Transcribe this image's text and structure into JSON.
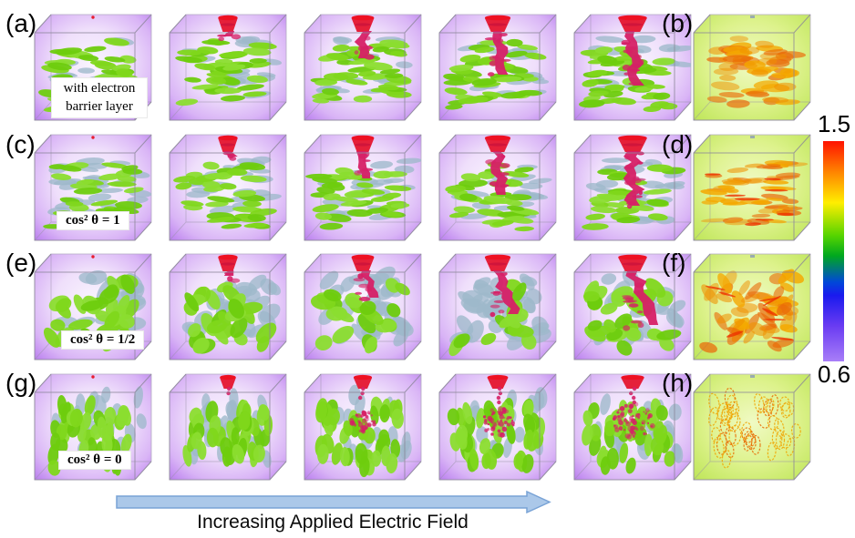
{
  "rows": [
    {
      "label": "(a)",
      "viz_label": "(b)",
      "caption": "with electron barrier layer",
      "caption_style": "text",
      "orientation": "horizontal",
      "breakdown": "tree",
      "stages": [
        0,
        1,
        2,
        3,
        4
      ],
      "disc_count": 58,
      "gray_ratio": 0.3,
      "viz_style": "filled"
    },
    {
      "label": "(c)",
      "viz_label": "(d)",
      "caption": "cos² θ = 1",
      "caption_style": "math",
      "orientation": "horizontal",
      "breakdown": "tree",
      "stages": [
        0,
        1,
        2,
        3,
        4
      ],
      "disc_count": 56,
      "gray_ratio": 0.42,
      "viz_style": "filled-thin"
    },
    {
      "label": "(e)",
      "viz_label": "(f)",
      "caption": "cos² θ = 1/2",
      "caption_style": "math",
      "orientation": "random",
      "breakdown": "tree",
      "stages": [
        0,
        1,
        2,
        3,
        4
      ],
      "disc_count": 52,
      "gray_ratio": 0.45,
      "viz_style": "filled-mixed"
    },
    {
      "label": "(g)",
      "viz_label": "(h)",
      "caption": "cos² θ = 0",
      "caption_style": "math",
      "orientation": "vertical",
      "breakdown": "blob",
      "stages": [
        0,
        1,
        2,
        3,
        4
      ],
      "disc_count": 62,
      "gray_ratio": 0.35,
      "viz_style": "rings"
    }
  ],
  "colorbar": {
    "max_label": "1.5",
    "min_label": "0.6",
    "gradient_stops": [
      "#ff1200 0%",
      "#ff8400 14%",
      "#ffee00 28%",
      "#55d400 43%",
      "#00a81e 52%",
      "#0048d8 64%",
      "#1a1aee 70%",
      "#6a3cf2 84%",
      "#a87ef8 100%"
    ]
  },
  "arrow": {
    "label": "Increasing Applied Electric Field",
    "fill": "#abc8e9",
    "stroke": "#79a3d6"
  },
  "colors": {
    "filler_green": "#7fd71b",
    "filler_far_gray": "#9db9ca",
    "matrix_purple_edge": "#bc82ef",
    "matrix_purple_center": "#f9f5fe",
    "breakdown_funnel_red": "#ee1022",
    "breakdown_channel_crimson": "#d62066",
    "field_cube_green": "#dbf28c",
    "field_disc_orange": "#f09000",
    "frame_gray": "#8b8698"
  }
}
